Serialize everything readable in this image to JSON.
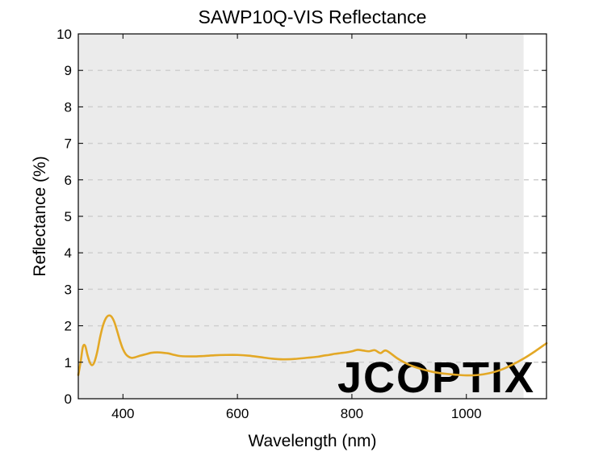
{
  "chart_data": {
    "type": "line",
    "title": "SAWP10Q-VIS Reflectance",
    "xlabel": "Wavelength (nm)",
    "ylabel": "Reflectance (%)",
    "xlim": [
      322,
      1140
    ],
    "ylim": [
      0,
      10
    ],
    "xticks": [
      400,
      600,
      800,
      1000
    ],
    "yticks": [
      0,
      1,
      2,
      3,
      4,
      5,
      6,
      7,
      8,
      9,
      10
    ],
    "grid": "horizontal dashed",
    "shaded_band": [
      322,
      1100
    ],
    "colors": {
      "line": "#E3A826",
      "band": "#EBEBEB",
      "grid": "#CFCFCF"
    },
    "series": [
      {
        "x": [
          322,
          326,
          330,
          334,
          338,
          342,
          346,
          350,
          355,
          360,
          365,
          370,
          375,
          380,
          385,
          390,
          395,
          400,
          405,
          410,
          415,
          420,
          430,
          440,
          450,
          460,
          470,
          480,
          490,
          500,
          520,
          540,
          560,
          580,
          600,
          620,
          640,
          660,
          680,
          700,
          720,
          740,
          750,
          760,
          770,
          780,
          790,
          800,
          810,
          820,
          830,
          840,
          850,
          860,
          880,
          900,
          920,
          940,
          960,
          980,
          1000,
          1020,
          1040,
          1060,
          1080,
          1100,
          1120,
          1140
        ],
        "y": [
          0.65,
          1.0,
          1.42,
          1.45,
          1.2,
          1.0,
          0.92,
          1.0,
          1.28,
          1.68,
          2.0,
          2.2,
          2.28,
          2.25,
          2.1,
          1.85,
          1.58,
          1.36,
          1.22,
          1.15,
          1.12,
          1.13,
          1.18,
          1.22,
          1.26,
          1.27,
          1.26,
          1.24,
          1.2,
          1.17,
          1.16,
          1.17,
          1.19,
          1.2,
          1.2,
          1.18,
          1.14,
          1.1,
          1.08,
          1.09,
          1.12,
          1.15,
          1.18,
          1.2,
          1.23,
          1.25,
          1.27,
          1.3,
          1.34,
          1.32,
          1.3,
          1.33,
          1.25,
          1.32,
          1.1,
          0.93,
          0.82,
          0.74,
          0.69,
          0.66,
          0.64,
          0.65,
          0.7,
          0.79,
          0.93,
          1.1,
          1.3,
          1.52
        ]
      }
    ]
  },
  "watermark": "JCOPTIX"
}
